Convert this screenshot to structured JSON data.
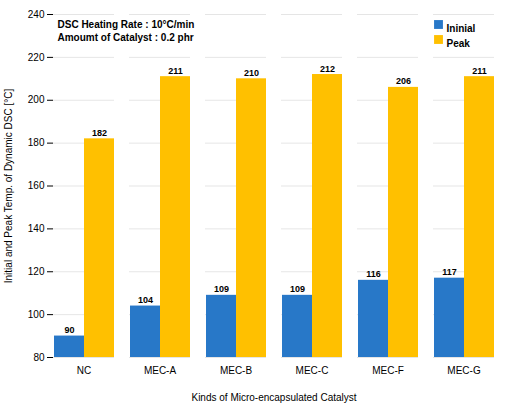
{
  "chart_data": {
    "type": "bar",
    "categories": [
      "NC",
      "MEC-A",
      "MEC-B",
      "MEC-C",
      "MEC-F",
      "MEC-G"
    ],
    "series": [
      {
        "name": "Ininial",
        "color": "#2878c8",
        "values": [
          90,
          104,
          109,
          109,
          116,
          117
        ]
      },
      {
        "name": "Peak",
        "color": "#ffc000",
        "values": [
          182,
          211,
          210,
          212,
          206,
          211
        ]
      }
    ],
    "xlabel": "Kinds of Micro-encapsulated Catalyst",
    "ylabel": "Initial and Peak Temp. of Dynamic DSC [°C]",
    "ylim": [
      80,
      240
    ],
    "yticks": [
      80,
      100,
      120,
      140,
      160,
      180,
      200,
      220,
      240
    ],
    "annotation": "DSC Heating Rate : 10°C/min\nAmoumt of Catalyst : 0.2 phr",
    "grid": true,
    "legend": "upper right",
    "data_labels": true
  }
}
